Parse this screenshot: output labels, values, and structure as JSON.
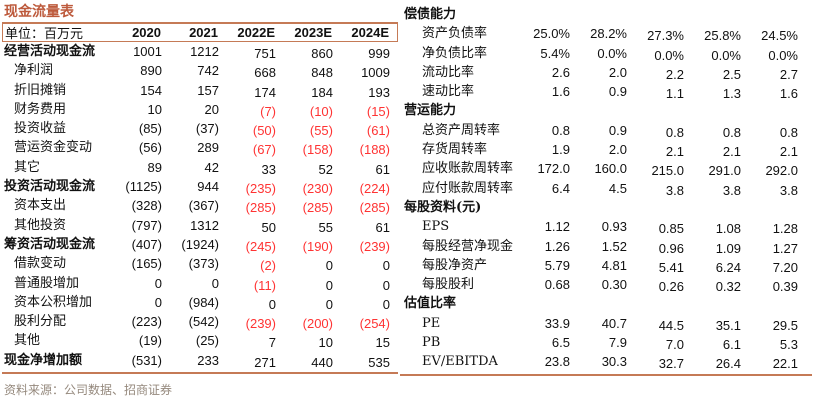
{
  "colors": {
    "accent": "#bd5a3c",
    "rule_line": "#c57a56",
    "negative_forecast": "#ff3333",
    "source_text": "#95897d"
  },
  "left_table": {
    "title": "现金流量表",
    "unit_label": "单位：百万元",
    "columns": [
      "2020",
      "2021",
      "2022E",
      "2023E",
      "2024E"
    ],
    "rows": [
      {
        "label": "经营活动现金流",
        "bold": true,
        "values": [
          "1001",
          "1212",
          "751",
          "860",
          "999"
        ]
      },
      {
        "label": "净利润",
        "bold": false,
        "values": [
          "890",
          "742",
          "668",
          "848",
          "1009"
        ]
      },
      {
        "label": "折旧摊销",
        "bold": false,
        "values": [
          "154",
          "157",
          "174",
          "184",
          "193"
        ]
      },
      {
        "label": "财务费用",
        "bold": false,
        "values": [
          "10",
          "20",
          "(7)",
          "(10)",
          "(15)"
        ]
      },
      {
        "label": "投资收益",
        "bold": false,
        "values": [
          "(85)",
          "(37)",
          "(50)",
          "(55)",
          "(61)"
        ]
      },
      {
        "label": "营运资金变动",
        "bold": false,
        "values": [
          "(56)",
          "289",
          "(67)",
          "(158)",
          "(188)"
        ]
      },
      {
        "label": "其它",
        "bold": false,
        "values": [
          "89",
          "42",
          "33",
          "52",
          "61"
        ]
      },
      {
        "label": "投资活动现金流",
        "bold": true,
        "values": [
          "(1125)",
          "944",
          "(235)",
          "(230)",
          "(224)"
        ]
      },
      {
        "label": "资本支出",
        "bold": false,
        "values": [
          "(328)",
          "(367)",
          "(285)",
          "(285)",
          "(285)"
        ]
      },
      {
        "label": "其他投资",
        "bold": false,
        "values": [
          "(797)",
          "1312",
          "50",
          "55",
          "61"
        ]
      },
      {
        "label": "筹资活动现金流",
        "bold": true,
        "values": [
          "(407)",
          "(1924)",
          "(245)",
          "(190)",
          "(239)"
        ]
      },
      {
        "label": "借款变动",
        "bold": false,
        "values": [
          "(165)",
          "(373)",
          "(2)",
          "0",
          "0"
        ]
      },
      {
        "label": "普通股增加",
        "bold": false,
        "values": [
          "0",
          "0",
          "(11)",
          "0",
          "0"
        ]
      },
      {
        "label": "资本公积增加",
        "bold": false,
        "values": [
          "0",
          "(984)",
          "0",
          "0",
          "0"
        ]
      },
      {
        "label": "股利分配",
        "bold": false,
        "values": [
          "(223)",
          "(542)",
          "(239)",
          "(200)",
          "(254)"
        ]
      },
      {
        "label": "其他",
        "bold": false,
        "values": [
          "(19)",
          "(25)",
          "7",
          "10",
          "15"
        ]
      },
      {
        "label": "现金净增加额",
        "bold": true,
        "values": [
          "(531)",
          "233",
          "271",
          "440",
          "535"
        ]
      }
    ]
  },
  "right_table": {
    "sections": [
      {
        "header": "偿债能力",
        "rows": [
          {
            "label": "资产负债率",
            "values": [
              "25.0%",
              "28.2%",
              "27.3%",
              "25.8%",
              "24.5%"
            ]
          },
          {
            "label": "净负债比率",
            "values": [
              "5.4%",
              "0.0%",
              "0.0%",
              "0.0%",
              "0.0%"
            ]
          },
          {
            "label": "流动比率",
            "values": [
              "2.6",
              "2.0",
              "2.2",
              "2.5",
              "2.7"
            ]
          },
          {
            "label": "速动比率",
            "values": [
              "1.6",
              "0.9",
              "1.1",
              "1.3",
              "1.6"
            ]
          }
        ]
      },
      {
        "header": "营运能力",
        "rows": [
          {
            "label": "总资产周转率",
            "values": [
              "0.8",
              "0.9",
              "0.8",
              "0.8",
              "0.8"
            ]
          },
          {
            "label": "存货周转率",
            "values": [
              "1.9",
              "2.0",
              "2.1",
              "2.1",
              "2.1"
            ]
          },
          {
            "label": "应收账款周转率",
            "values": [
              "172.0",
              "160.0",
              "215.0",
              "291.0",
              "292.0"
            ]
          },
          {
            "label": "应付账款周转率",
            "values": [
              "6.4",
              "4.5",
              "3.8",
              "3.8",
              "3.8"
            ]
          }
        ]
      },
      {
        "header": "每股资料(元)",
        "rows": [
          {
            "label": "EPS",
            "values": [
              "1.12",
              "0.93",
              "0.85",
              "1.08",
              "1.28"
            ]
          },
          {
            "label": "每股经营净现金",
            "values": [
              "1.26",
              "1.52",
              "0.96",
              "1.09",
              "1.27"
            ]
          },
          {
            "label": "每股净资产",
            "values": [
              "5.79",
              "4.81",
              "5.41",
              "6.24",
              "7.20"
            ]
          },
          {
            "label": "每股股利",
            "values": [
              "0.68",
              "0.30",
              "0.26",
              "0.32",
              "0.39"
            ]
          }
        ]
      },
      {
        "header": "估值比率",
        "rows": [
          {
            "label": "PE",
            "values": [
              "33.9",
              "40.7",
              "44.5",
              "35.1",
              "29.5"
            ]
          },
          {
            "label": "PB",
            "values": [
              "6.5",
              "7.9",
              "7.0",
              "6.1",
              "5.3"
            ]
          },
          {
            "label": "EV/EBITDA",
            "values": [
              "23.8",
              "30.3",
              "32.7",
              "26.4",
              "22.1"
            ]
          }
        ]
      }
    ]
  },
  "footer": {
    "source": "资料来源：公司数据、招商证券"
  }
}
